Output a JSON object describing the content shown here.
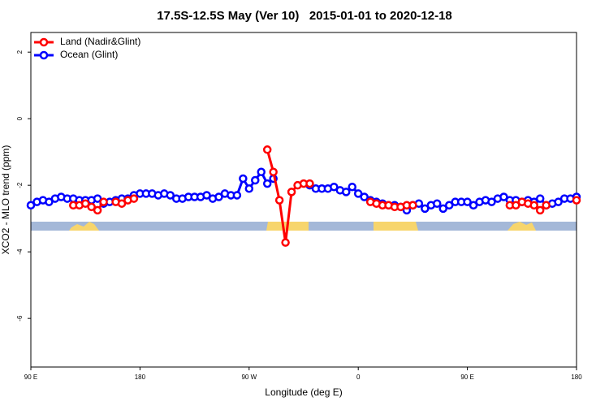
{
  "chart_data": {
    "type": "line",
    "title": "17.5S-12.5S May (Ver 10)   2015-01-01 to 2020-12-18",
    "x_label": "Longitude (deg E)",
    "y_label": "XCO2 - MLO trend (ppm)",
    "xlim": [
      90,
      540
    ],
    "xticks": [
      {
        "value": 90,
        "label": "90 E"
      },
      180,
      {
        "value": 270,
        "label": "90 W"
      },
      {
        "value": 360,
        "label": "0"
      },
      {
        "value": 450,
        "label": "90 E"
      },
      {
        "value": 540,
        "label": "180"
      }
    ],
    "ylim": [
      -7.46,
      2.59
    ],
    "yticks": [
      -6,
      -4,
      -2,
      0,
      2
    ],
    "legend": "top-left",
    "series": [
      {
        "name": "Land (Nadir&Glint)",
        "color": "#ff0000",
        "x": [
          125,
          130,
          135,
          140,
          145,
          150,
          155,
          160,
          165,
          170,
          175,
          180,
          285,
          290,
          295,
          300,
          305,
          310,
          315,
          320,
          325,
          370,
          375,
          380,
          385,
          390,
          395,
          400,
          405,
          410,
          485,
          490,
          495,
          500,
          505,
          510,
          515,
          520,
          540
        ],
        "values": [
          -2.6,
          -2.6,
          -2.55,
          -2.65,
          -2.75,
          -2.5,
          null,
          -2.5,
          -2.55,
          -2.45,
          -2.4,
          null,
          -0.93,
          -1.6,
          -2.45,
          -3.72,
          -2.2,
          -2.0,
          -1.95,
          -1.95,
          null,
          -2.5,
          -2.55,
          -2.6,
          -2.6,
          -2.65,
          -2.65,
          -2.6,
          -2.6,
          null,
          -2.6,
          -2.6,
          -2.5,
          -2.55,
          -2.6,
          -2.75,
          -2.6,
          null,
          -2.45
        ]
      },
      {
        "name": "Ocean (Glint)",
        "color": "#0000ff",
        "x": [
          90,
          95,
          100,
          105,
          110,
          115,
          120,
          125,
          130,
          135,
          140,
          145,
          150,
          155,
          160,
          165,
          170,
          175,
          180,
          185,
          190,
          195,
          200,
          205,
          210,
          215,
          220,
          225,
          230,
          235,
          240,
          245,
          250,
          255,
          260,
          265,
          270,
          275,
          280,
          285,
          290,
          295,
          300,
          305,
          310,
          315,
          320,
          325,
          330,
          335,
          340,
          345,
          350,
          355,
          360,
          365,
          370,
          375,
          380,
          385,
          390,
          395,
          400,
          405,
          410,
          415,
          420,
          425,
          430,
          435,
          440,
          445,
          450,
          455,
          460,
          465,
          470,
          475,
          480,
          485,
          490,
          495,
          500,
          505,
          510,
          515,
          520,
          525,
          530,
          535,
          540
        ],
        "values": [
          -2.6,
          -2.5,
          -2.45,
          -2.5,
          -2.4,
          -2.35,
          -2.4,
          -2.4,
          -2.45,
          -2.45,
          -2.45,
          -2.4,
          -2.55,
          -2.5,
          -2.45,
          -2.4,
          -2.4,
          -2.3,
          -2.25,
          -2.25,
          -2.25,
          -2.3,
          -2.25,
          -2.3,
          -2.4,
          -2.4,
          -2.35,
          -2.35,
          -2.35,
          -2.3,
          -2.4,
          -2.35,
          -2.25,
          -2.3,
          -2.3,
          -1.8,
          -2.1,
          -1.85,
          -1.6,
          -1.95,
          -1.8,
          null,
          null,
          null,
          null,
          null,
          -2.0,
          -2.1,
          -2.1,
          -2.1,
          -2.05,
          -2.15,
          -2.2,
          -2.05,
          -2.25,
          -2.35,
          -2.45,
          -2.5,
          -2.55,
          -2.6,
          -2.6,
          -2.65,
          -2.75,
          -2.6,
          -2.55,
          -2.7,
          -2.6,
          -2.55,
          -2.7,
          -2.6,
          -2.5,
          -2.5,
          -2.5,
          -2.6,
          -2.5,
          -2.45,
          -2.5,
          -2.4,
          -2.35,
          -2.45,
          -2.45,
          -2.5,
          -2.45,
          -2.5,
          -2.4,
          -2.6,
          -2.55,
          -2.5,
          -2.4,
          -2.4,
          -2.35
        ]
      }
    ]
  }
}
